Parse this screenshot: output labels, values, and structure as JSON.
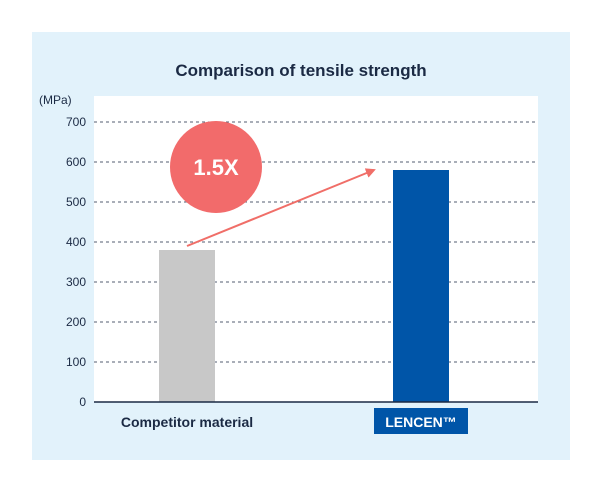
{
  "chart_data": {
    "type": "bar",
    "title": "Comparison of tensile strength",
    "unit_label": "(MPa)",
    "categories": [
      "Competitor material",
      "LENCEN™"
    ],
    "values": [
      380,
      580
    ],
    "colors": [
      "#c8c8c8",
      "#0055a8"
    ],
    "ylim": [
      0,
      700
    ],
    "yticks": [
      0,
      100,
      200,
      300,
      400,
      500,
      600,
      700
    ],
    "grid": true,
    "grid_style": "dashed",
    "annotation": {
      "text": "1.5X",
      "color": "#f26b6b",
      "arrow_color": "#f06e68"
    }
  },
  "colors": {
    "panel_bg": "#e2f2fb",
    "plot_bg": "#ffffff",
    "text": "#1b2a44",
    "highlight_label_bg": "#0055a8"
  }
}
